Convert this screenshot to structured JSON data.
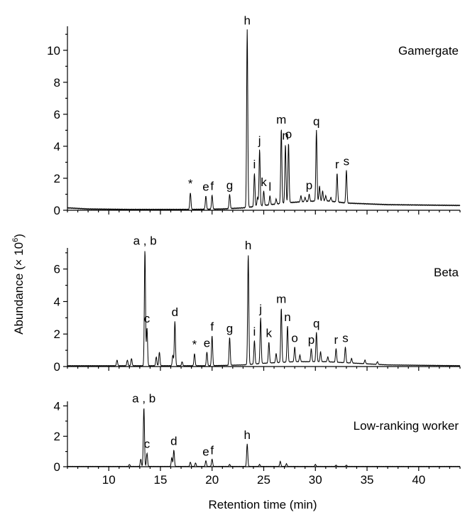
{
  "chart_data": {
    "type": "line",
    "xlabel": "Retention time (min)",
    "ylabel_prefix": "Abundance (× 10",
    "ylabel_exp": "6",
    "ylabel_suffix": ")",
    "xlim": [
      6,
      44
    ],
    "x_ticks": [
      10,
      15,
      20,
      25,
      30,
      35,
      40
    ],
    "panels": [
      {
        "name": "Gamergate",
        "ylim": [
          0,
          11.5
        ],
        "y_ticks": [
          0,
          2,
          4,
          6,
          8,
          10
        ],
        "baseline": [
          [
            6,
            0.15
          ],
          [
            8,
            0.08
          ],
          [
            12,
            0.05
          ],
          [
            18,
            0.05
          ],
          [
            21,
            0.08
          ],
          [
            23,
            0.15
          ],
          [
            25,
            0.3
          ],
          [
            27,
            0.45
          ],
          [
            29,
            0.55
          ],
          [
            31,
            0.6
          ],
          [
            33,
            0.45
          ],
          [
            35,
            0.4
          ],
          [
            37,
            0.35
          ],
          [
            44,
            0.3
          ]
        ],
        "peaks": [
          {
            "label": "*",
            "x": 17.9,
            "y": 1.1
          },
          {
            "label": "e",
            "x": 19.4,
            "y": 0.9
          },
          {
            "label": "f",
            "x": 20.0,
            "y": 0.95
          },
          {
            "label": "g",
            "x": 21.7,
            "y": 1.0
          },
          {
            "label": "h",
            "x": 23.4,
            "y": 11.3
          },
          {
            "label": "i",
            "x": 24.1,
            "y": 2.3
          },
          {
            "label": "j",
            "x": 24.6,
            "y": 3.8
          },
          {
            "label": "k",
            "x": 25.0,
            "y": 1.2
          },
          {
            "label": "l",
            "x": 25.6,
            "y": 0.9
          },
          {
            "label": "m",
            "x": 26.7,
            "y": 5.1
          },
          {
            "label": "n",
            "x": 27.1,
            "y": 4.1
          },
          {
            "label": "o",
            "x": 27.4,
            "y": 4.2
          },
          {
            "label": "p",
            "x": 29.4,
            "y": 1.0
          },
          {
            "label": "q",
            "x": 30.1,
            "y": 5.0
          },
          {
            "label": "r",
            "x": 32.1,
            "y": 2.3
          },
          {
            "label": "s",
            "x": 33.0,
            "y": 2.5
          }
        ],
        "minor_peaks": [
          [
            28.6,
            0.9
          ],
          [
            30.4,
            1.5
          ],
          [
            30.7,
            1.2
          ],
          [
            31.0,
            0.9
          ],
          [
            29.0,
            0.8
          ],
          [
            26.2,
            0.7
          ],
          [
            24.4,
            0.8
          ],
          [
            31.5,
            0.8
          ]
        ]
      },
      {
        "name": "Beta",
        "ylim": [
          0,
          7.3
        ],
        "y_ticks": [
          0,
          2,
          4,
          6
        ],
        "baseline": [
          [
            6,
            0.05
          ],
          [
            20,
            0.05
          ],
          [
            23,
            0.1
          ],
          [
            25,
            0.2
          ],
          [
            28,
            0.3
          ],
          [
            31,
            0.3
          ],
          [
            34,
            0.2
          ],
          [
            37,
            0.1
          ],
          [
            44,
            0.05
          ]
        ],
        "peaks": [
          {
            "label": "a , b",
            "x": 13.5,
            "y": 7.2
          },
          {
            "label": "c",
            "x": 13.7,
            "y": 2.4
          },
          {
            "label": "d",
            "x": 16.4,
            "y": 2.8
          },
          {
            "label": "*",
            "x": 18.3,
            "y": 0.8
          },
          {
            "label": "e",
            "x": 19.5,
            "y": 0.9
          },
          {
            "label": "f",
            "x": 20.0,
            "y": 1.9
          },
          {
            "label": "g",
            "x": 21.7,
            "y": 1.8
          },
          {
            "label": "h",
            "x": 23.5,
            "y": 6.9
          },
          {
            "label": "i",
            "x": 24.1,
            "y": 1.6
          },
          {
            "label": "j",
            "x": 24.7,
            "y": 3.0
          },
          {
            "label": "k",
            "x": 25.5,
            "y": 1.5
          },
          {
            "label": "m",
            "x": 26.7,
            "y": 3.6
          },
          {
            "label": "n",
            "x": 27.3,
            "y": 2.5
          },
          {
            "label": "o",
            "x": 28.0,
            "y": 1.2
          },
          {
            "label": "p",
            "x": 29.6,
            "y": 1.1
          },
          {
            "label": "q",
            "x": 30.1,
            "y": 2.1
          },
          {
            "label": "r",
            "x": 32.0,
            "y": 1.1
          },
          {
            "label": "s",
            "x": 32.9,
            "y": 1.2
          }
        ],
        "minor_peaks": [
          [
            10.8,
            0.4
          ],
          [
            11.8,
            0.4
          ],
          [
            12.2,
            0.5
          ],
          [
            14.6,
            0.6
          ],
          [
            14.9,
            0.9
          ],
          [
            16.2,
            0.7
          ],
          [
            17.1,
            0.3
          ],
          [
            26.2,
            0.8
          ],
          [
            28.5,
            0.7
          ],
          [
            30.5,
            0.9
          ],
          [
            31.2,
            0.6
          ],
          [
            33.5,
            0.5
          ],
          [
            34.8,
            0.4
          ],
          [
            36.0,
            0.3
          ]
        ]
      },
      {
        "name": "Low-ranking worker",
        "ylim": [
          0,
          4.3
        ],
        "y_ticks": [
          0,
          2,
          4
        ],
        "baseline": [
          [
            6,
            0.02
          ],
          [
            44,
            0.02
          ]
        ],
        "peaks": [
          {
            "label": "a , b",
            "x": 13.4,
            "y": 3.9
          },
          {
            "label": "c",
            "x": 13.7,
            "y": 0.9
          },
          {
            "label": "d",
            "x": 16.3,
            "y": 1.1
          },
          {
            "label": "e",
            "x": 19.4,
            "y": 0.4
          },
          {
            "label": "f",
            "x": 20.0,
            "y": 0.5
          },
          {
            "label": "h",
            "x": 23.4,
            "y": 1.5
          }
        ],
        "minor_peaks": [
          [
            12.0,
            0.15
          ],
          [
            13.1,
            0.5
          ],
          [
            16.1,
            0.6
          ],
          [
            17.9,
            0.3
          ],
          [
            18.4,
            0.25
          ],
          [
            21.7,
            0.15
          ],
          [
            24.6,
            0.15
          ],
          [
            26.6,
            0.35
          ],
          [
            27.2,
            0.2
          ],
          [
            30.0,
            0.15
          ],
          [
            32.0,
            0.1
          ],
          [
            33.0,
            0.1
          ]
        ]
      }
    ]
  }
}
